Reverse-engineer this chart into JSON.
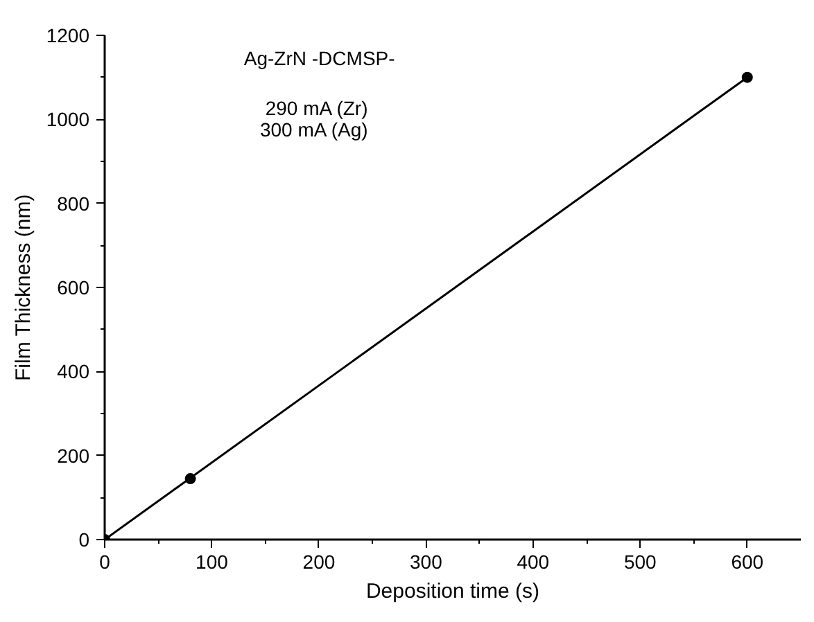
{
  "chart_data": {
    "type": "scatter",
    "xlabel": "Deposition time (s)",
    "ylabel": "Film Thickness (nm)",
    "annotations": [
      "Ag-ZrN -DCMSP-",
      "290 mA (Zr)",
      "300 mA (Ag)"
    ],
    "xlim": [
      0,
      650
    ],
    "xticks": [
      0,
      100,
      200,
      300,
      400,
      500,
      600
    ],
    "ylim": [
      0,
      1200
    ],
    "yticks": [
      0,
      200,
      400,
      600,
      800,
      1000,
      1200
    ],
    "grid": false,
    "series": [
      {
        "marker": "circle",
        "color": "#000000",
        "x": [
          0,
          80,
          600
        ],
        "values": [
          0,
          145,
          1100
        ]
      },
      {
        "type": "line",
        "color": "#000000",
        "x": [
          0,
          600
        ],
        "values": [
          0,
          1100
        ]
      }
    ]
  }
}
